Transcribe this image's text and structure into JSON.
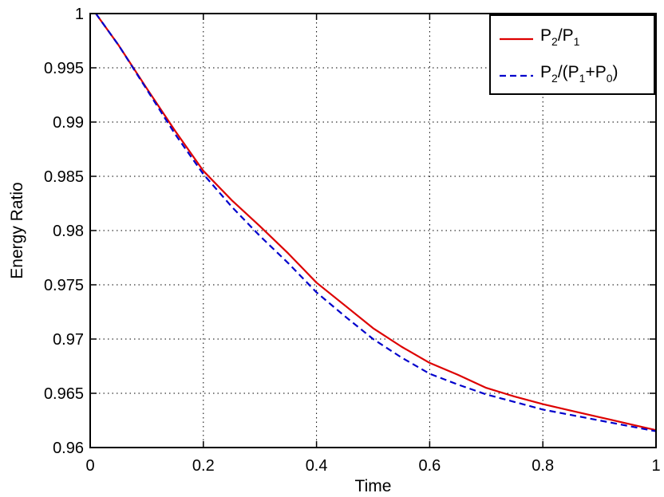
{
  "chart_data": {
    "type": "line",
    "title": "",
    "xlabel": "Time",
    "ylabel": "Energy Ratio",
    "xlim": [
      0,
      1
    ],
    "ylim": [
      0.96,
      1.0
    ],
    "xticks": [
      0,
      0.2,
      0.4,
      0.6,
      0.8,
      1
    ],
    "xtick_labels": [
      "0",
      "0.2",
      "0.4",
      "0.6",
      "0.8",
      "1"
    ],
    "yticks": [
      0.96,
      0.965,
      0.97,
      0.975,
      0.98,
      0.985,
      0.99,
      0.995,
      1.0
    ],
    "ytick_labels": [
      "0.96",
      "0.965",
      "0.97",
      "0.975",
      "0.98",
      "0.985",
      "0.99",
      "0.995",
      "1"
    ],
    "grid": true,
    "legend_position": "top-right",
    "series": [
      {
        "name": "P2/P1",
        "legend": {
          "base": "P",
          "sub1": "2",
          "mid1": "/P",
          "sub2": "1",
          "mid2": "",
          "sub3": "",
          "tail": ""
        },
        "color": "#dd0000",
        "dash": "solid",
        "x": [
          0.01,
          0.05,
          0.1,
          0.15,
          0.2,
          0.25,
          0.3,
          0.35,
          0.4,
          0.45,
          0.5,
          0.55,
          0.6,
          0.65,
          0.7,
          0.75,
          0.8,
          0.85,
          0.9,
          0.95,
          1.0
        ],
        "y": [
          1.0,
          0.9971,
          0.9931,
          0.9892,
          0.9855,
          0.9828,
          0.9804,
          0.9779,
          0.9752,
          0.9731,
          0.971,
          0.9693,
          0.9678,
          0.9667,
          0.9655,
          0.9647,
          0.964,
          0.9634,
          0.9628,
          0.9622,
          0.9616
        ]
      },
      {
        "name": "P2/(P1+P0)",
        "legend": {
          "base": "P",
          "sub1": "2",
          "mid1": "/(P",
          "sub2": "1",
          "mid2": "+P",
          "sub3": "0",
          "tail": ")"
        },
        "color": "#0000cc",
        "dash": "dashed",
        "x": [
          0.01,
          0.05,
          0.1,
          0.15,
          0.2,
          0.25,
          0.3,
          0.35,
          0.4,
          0.45,
          0.5,
          0.55,
          0.6,
          0.65,
          0.7,
          0.75,
          0.8,
          0.85,
          0.9,
          0.95,
          1.0
        ],
        "y": [
          1.0,
          0.9971,
          0.993,
          0.9889,
          0.9852,
          0.9822,
          0.9795,
          0.977,
          0.9743,
          0.9721,
          0.97,
          0.9683,
          0.9668,
          0.9658,
          0.9649,
          0.9642,
          0.9635,
          0.963,
          0.9625,
          0.962,
          0.9615
        ]
      }
    ]
  }
}
